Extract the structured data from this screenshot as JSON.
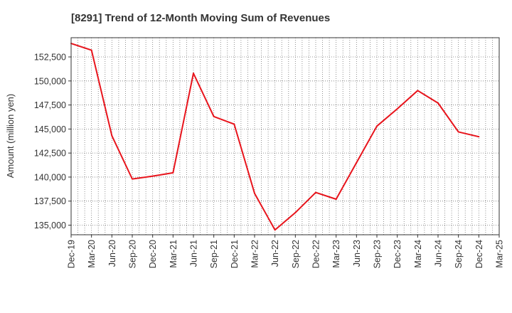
{
  "chart_data": {
    "type": "line",
    "title": "[8291]  Trend of 12-Month Moving Sum of Revenues",
    "xlabel": "",
    "ylabel": "Amount (million yen)",
    "x": [
      "Dec-19",
      "Mar-20",
      "Jun-20",
      "Sep-20",
      "Dec-20",
      "Mar-21",
      "Jun-21",
      "Sep-21",
      "Dec-21",
      "Mar-22",
      "Jun-22",
      "Sep-22",
      "Dec-22",
      "Mar-23",
      "Jun-23",
      "Sep-23",
      "Dec-23",
      "Mar-24",
      "Jun-24",
      "Sep-24",
      "Dec-24",
      "Mar-25"
    ],
    "series": [
      {
        "color": "#e8141c",
        "values": [
          153900,
          153200,
          144300,
          139800,
          140100,
          140450,
          150800,
          146300,
          145500,
          138300,
          134500,
          136300,
          138400,
          137700,
          141500,
          145300,
          147100,
          149000,
          147700,
          144700,
          144200,
          null
        ]
      }
    ],
    "yticks": [
      135000,
      137500,
      140000,
      142500,
      145000,
      147500,
      150000,
      152500
    ],
    "ytick_labels": [
      "135,000",
      "137,500",
      "140,000",
      "142,500",
      "145,000",
      "147,500",
      "150,000",
      "152,500"
    ],
    "ylim": [
      134000,
      154500
    ],
    "grid": true,
    "grid_style": "dotted",
    "legend": "none"
  }
}
